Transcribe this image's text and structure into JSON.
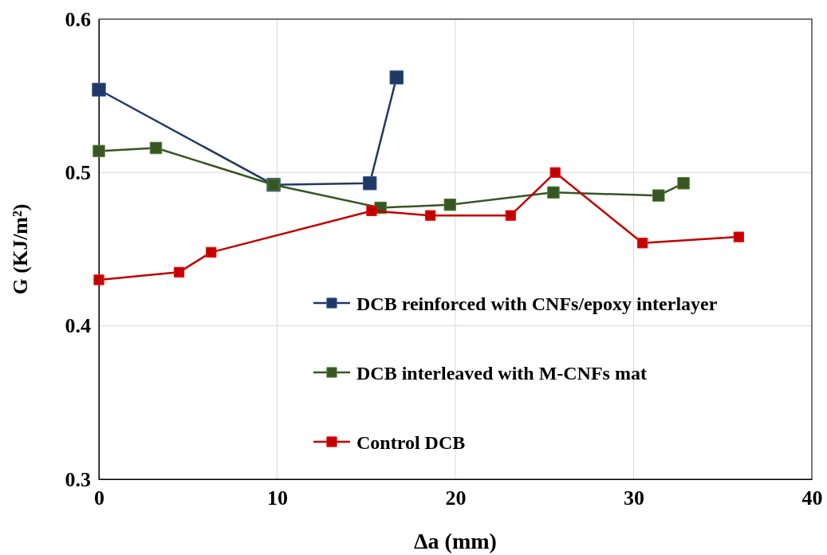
{
  "chart_data": {
    "type": "line",
    "xlabel": "Δa (mm)",
    "ylabel": "G (KJ/m²)",
    "xlim": [
      0,
      40
    ],
    "xticks": [
      0,
      10,
      20,
      30,
      40
    ],
    "ylim": [
      0.3,
      0.6
    ],
    "yticks": [
      {
        "value": 0.3,
        "label": "0.3"
      },
      {
        "value": 0.4,
        "label": "0.4"
      },
      {
        "value": 0.5,
        "label": "0.5"
      },
      {
        "value": 0.6,
        "label": "0.6"
      }
    ],
    "grid": true,
    "legend": "bottom right",
    "marker": "square",
    "line_style": "solid",
    "series": [
      {
        "name": "DCB reinforced with CNFs/epoxy interlayer",
        "color": "#203864",
        "x": [
          0,
          9.8,
          15.2,
          16.7
        ],
        "values": [
          0.554,
          0.492,
          0.493,
          0.562
        ]
      },
      {
        "name": "DCB interleaved with M-CNFs mat",
        "color": "#375623",
        "x": [
          0,
          3.2,
          9.8,
          15.8,
          19.7,
          25.5,
          31.4,
          32.8
        ],
        "values": [
          0.514,
          0.516,
          0.492,
          0.477,
          0.479,
          0.487,
          0.485,
          0.493
        ]
      },
      {
        "name": "Control DCB",
        "color": "#c00000",
        "x": [
          0,
          4.5,
          6.3,
          15.3,
          18.6,
          23.1,
          25.6,
          30.5,
          35.9
        ],
        "values": [
          0.43,
          0.435,
          0.448,
          0.475,
          0.472,
          0.472,
          0.5,
          0.454,
          0.458
        ]
      }
    ]
  }
}
